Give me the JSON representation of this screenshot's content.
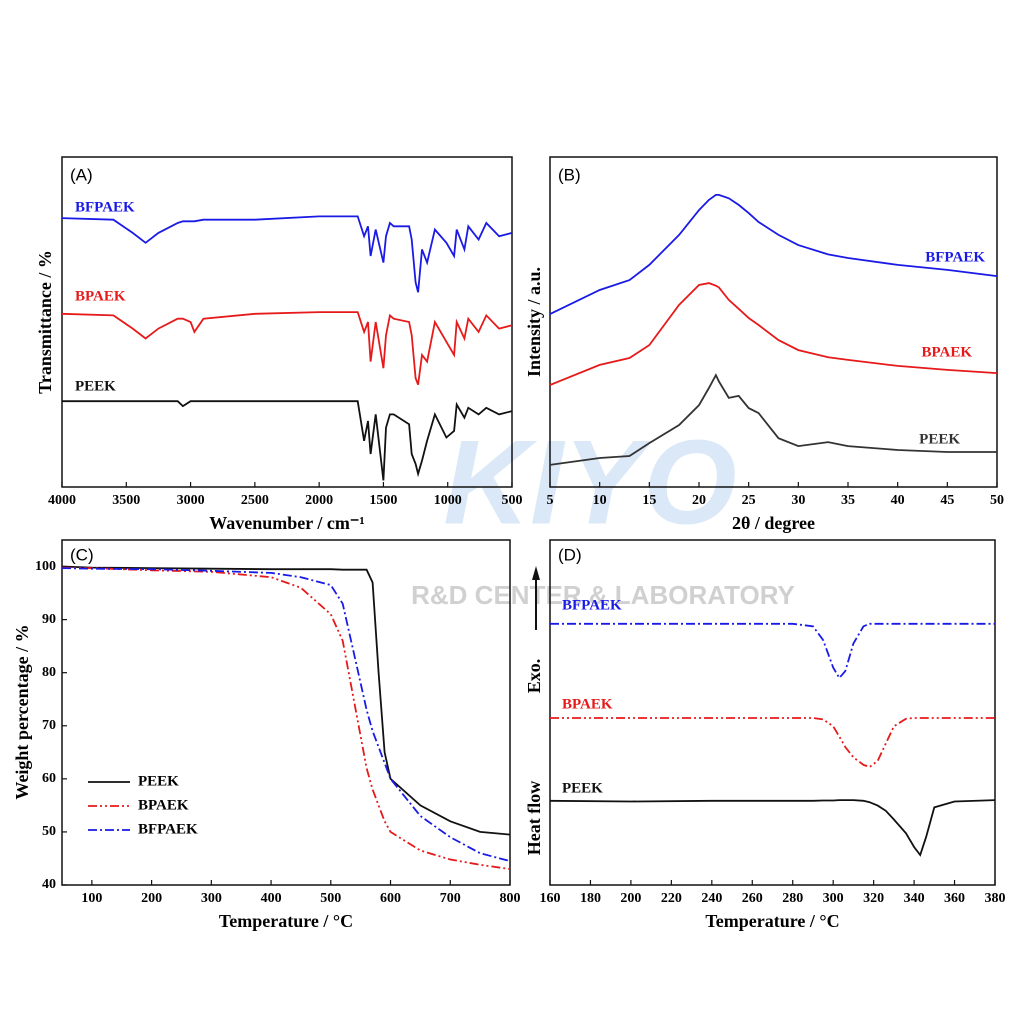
{
  "watermark": {
    "logo": "KIYO",
    "text": "R&D CENTER & LABORATORY"
  },
  "chart_data": [
    {
      "type": "line",
      "panel_label": "(A)",
      "xlabel": "Wavenumber / cm⁻¹",
      "ylabel": "Transmittance / %",
      "xlim": [
        4000,
        500
      ],
      "xticks": [
        4000,
        3500,
        3000,
        2500,
        2000,
        1500,
        1000,
        500
      ],
      "ylim": [
        0,
        100
      ],
      "x": [
        4000,
        3600,
        3450,
        3350,
        3250,
        3100,
        3060,
        3000,
        2970,
        2900,
        2500,
        2000,
        1700,
        1650,
        1620,
        1600,
        1560,
        1500,
        1480,
        1450,
        1420,
        1300,
        1280,
        1250,
        1230,
        1200,
        1160,
        1100,
        1010,
        950,
        930,
        870,
        840,
        760,
        700,
        600,
        500
      ],
      "series": [
        {
          "name": "BFPAEK",
          "color": "#1a1ae6",
          "style": "solid",
          "values": [
            81.5,
            81,
            77,
            74,
            77,
            80,
            80.5,
            80.5,
            80.5,
            81,
            81,
            82,
            82,
            76,
            79,
            70,
            78,
            68,
            76,
            80,
            79,
            79,
            75,
            62,
            59,
            72,
            68,
            78,
            74,
            70,
            78,
            72,
            79,
            75,
            80,
            76,
            77
          ]
        },
        {
          "name": "BPAEK",
          "color": "#e61a1a",
          "style": "solid",
          "values": [
            52.5,
            52,
            48,
            45,
            48,
            51,
            51,
            50,
            47,
            51,
            52.5,
            53,
            53,
            47,
            50,
            38,
            50,
            36,
            46,
            52,
            51,
            50,
            46,
            33,
            31,
            40,
            38,
            50,
            44,
            40,
            50,
            45,
            51,
            47,
            52,
            48,
            49
          ]
        },
        {
          "name": "PEEK",
          "color": "#111111",
          "style": "solid",
          "values": [
            26,
            26,
            26,
            26,
            26,
            26,
            24.5,
            26,
            26,
            26,
            26,
            26,
            26,
            14,
            20,
            10,
            22,
            2,
            18,
            22,
            22,
            19,
            10,
            7,
            4,
            8,
            14,
            22,
            15,
            17,
            25,
            21,
            24,
            22,
            24,
            22,
            23
          ]
        }
      ]
    },
    {
      "type": "line",
      "panel_label": "(B)",
      "xlabel": "2θ / degree",
      "ylabel": "Intensity / a.u.",
      "xlim": [
        5,
        50
      ],
      "xticks": [
        5,
        10,
        15,
        20,
        25,
        30,
        35,
        40,
        45,
        50
      ],
      "ylim": [
        0,
        100
      ],
      "x": [
        5,
        10,
        13,
        15,
        18,
        20,
        21,
        21.7,
        22,
        23,
        24,
        25,
        26,
        28,
        30,
        33,
        35,
        40,
        45,
        50
      ],
      "series": [
        {
          "name": "BFPAEK",
          "color": "#1a1ae6",
          "style": "solid",
          "values": [
            52.4,
            59.7,
            62.7,
            67.3,
            76.4,
            83.9,
            87,
            88.5,
            88.5,
            87.5,
            85.5,
            83,
            80.3,
            76.4,
            73.3,
            70.5,
            69.4,
            67.3,
            65.8,
            63.9
          ]
        },
        {
          "name": "BPAEK",
          "color": "#e61a1a",
          "style": "solid",
          "values": [
            30.9,
            37,
            39.1,
            43,
            55.2,
            61.2,
            61.8,
            61,
            60.5,
            56.7,
            54,
            51.2,
            49.1,
            44.5,
            41.5,
            39.3,
            38.5,
            36.7,
            35.5,
            34.5
          ]
        },
        {
          "name": "PEEK",
          "color": "#333333",
          "style": "solid",
          "values": [
            6.7,
            8.8,
            9.4,
            13.3,
            18.8,
            24.8,
            30,
            33.9,
            32,
            27,
            27.6,
            23.9,
            22.4,
            14.8,
            12.4,
            13.6,
            12.4,
            11.2,
            10.6,
            10.6
          ]
        }
      ]
    },
    {
      "type": "line",
      "panel_label": "(C)",
      "xlabel": "Temperature / °C",
      "ylabel": "Weight percentage / %",
      "xlim": [
        50,
        800
      ],
      "xticks": [
        100,
        200,
        300,
        400,
        500,
        600,
        700,
        800
      ],
      "ylim": [
        40,
        105
      ],
      "yticks": [
        40,
        50,
        60,
        70,
        80,
        90,
        100
      ],
      "legend": "lower left",
      "x": [
        50,
        100,
        200,
        300,
        400,
        450,
        500,
        520,
        540,
        560,
        570,
        580,
        590,
        600,
        650,
        700,
        750,
        800
      ],
      "series": [
        {
          "name": "PEEK",
          "color": "#111111",
          "style": "solid",
          "values": [
            100,
            99.8,
            99.7,
            99.6,
            99.5,
            99.5,
            99.5,
            99.4,
            99.4,
            99.4,
            97,
            80,
            65,
            60,
            55,
            52,
            50,
            49.5
          ]
        },
        {
          "name": "BPAEK",
          "color": "#e61a1a",
          "style": "dashdotdot",
          "values": [
            99.8,
            99.7,
            99.3,
            99,
            98,
            96,
            91,
            86,
            74,
            62,
            58,
            55,
            52,
            50,
            46.5,
            44.8,
            43.8,
            43
          ]
        },
        {
          "name": "BFPAEK",
          "color": "#1a1ae6",
          "style": "dashdot",
          "values": [
            99.7,
            99.6,
            99.5,
            99.2,
            98.8,
            98,
            96.5,
            93,
            83,
            73,
            69,
            66,
            63,
            60,
            53,
            49,
            46,
            44.5
          ]
        }
      ]
    },
    {
      "type": "line",
      "panel_label": "(D)",
      "xlabel": "Temperature / °C",
      "ylabel": "Heat flow",
      "annotations": [
        "Exo."
      ],
      "xlim": [
        160,
        380
      ],
      "xticks": [
        160,
        180,
        200,
        220,
        240,
        260,
        280,
        300,
        320,
        340,
        360,
        380
      ],
      "ylim": [
        0,
        100
      ],
      "x": [
        160,
        200,
        240,
        280,
        290,
        295,
        300,
        303,
        306,
        310,
        315,
        318,
        322,
        326,
        330,
        336,
        340,
        343,
        346,
        350,
        360,
        380
      ],
      "series": [
        {
          "name": "BFPAEK",
          "color": "#1a1ae6",
          "style": "dashdot",
          "values": [
            75.7,
            75.7,
            75.7,
            75.7,
            75,
            71,
            63,
            60,
            62,
            70,
            75,
            75.7,
            75.7,
            75.7,
            75.7,
            75.7,
            75.7,
            75.7,
            75.7,
            75.7,
            75.7,
            75.7
          ]
        },
        {
          "name": "BPAEK",
          "color": "#e61a1a",
          "style": "dashdotdot",
          "values": [
            48.4,
            48.4,
            48.4,
            48.4,
            48.4,
            48,
            46,
            43,
            40,
            37,
            34.8,
            34.2,
            36,
            41,
            46,
            48.2,
            48.4,
            48.4,
            48.4,
            48.4,
            48.4,
            48.4
          ]
        },
        {
          "name": "PEEK",
          "color": "#111111",
          "style": "solid",
          "values": [
            24.4,
            24.2,
            24.4,
            24.4,
            24.4,
            24.5,
            24.5,
            24.6,
            24.6,
            24.6,
            24.4,
            24,
            23,
            21.5,
            19,
            15,
            11,
            8.7,
            14,
            22.5,
            24.2,
            24.6
          ]
        }
      ]
    }
  ]
}
